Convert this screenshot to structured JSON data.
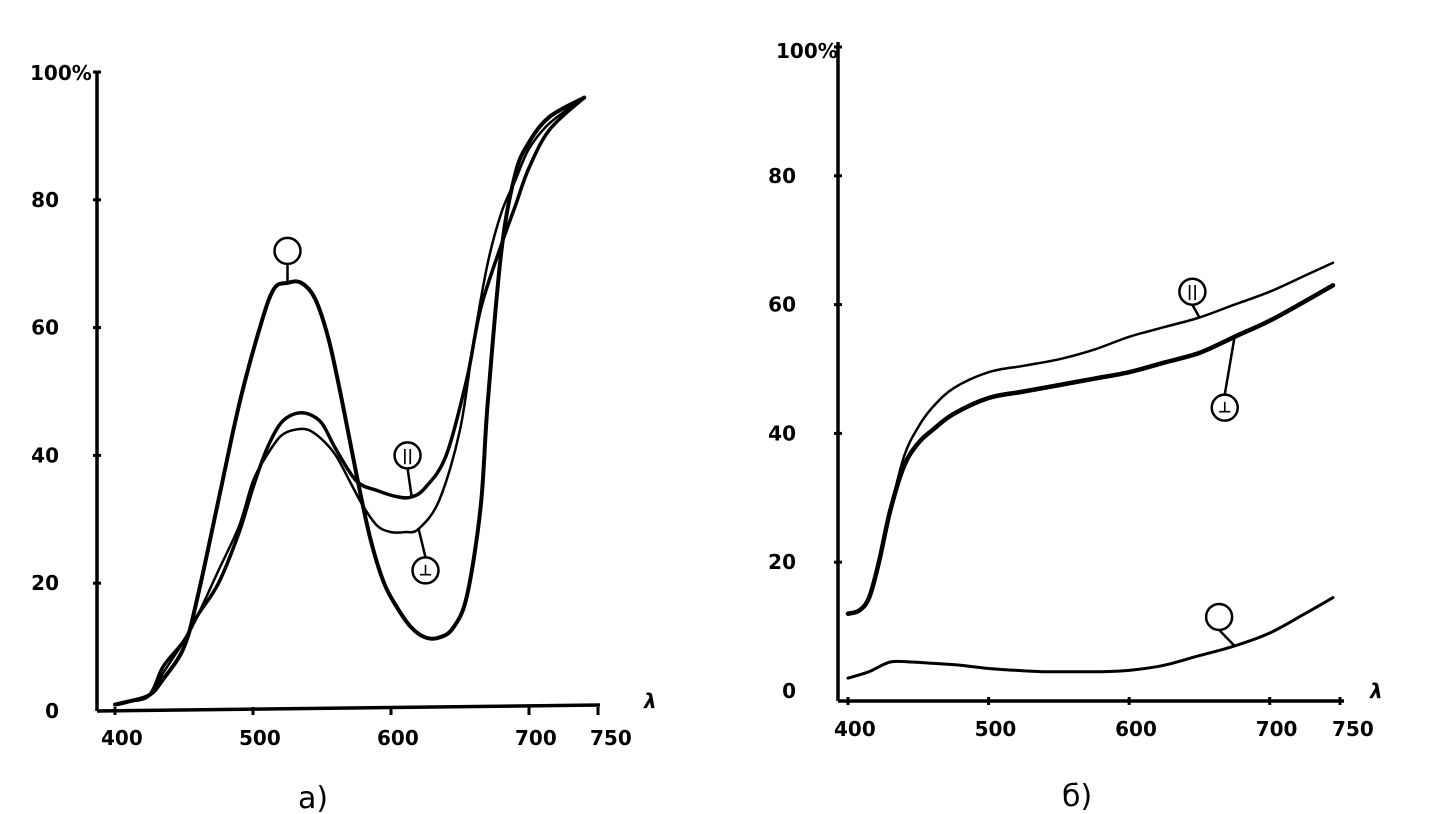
{
  "chart_data": [
    {
      "type": "line",
      "panel_label": "а)",
      "x_label": "λ",
      "x_ticks": [
        "400",
        "500",
        "600",
        "700",
        "750"
      ],
      "y_ticks": [
        "0",
        "20",
        "40",
        "60",
        "80",
        "100%"
      ],
      "xlim": [
        400,
        750
      ],
      "ylim": [
        0,
        100
      ],
      "series": [
        {
          "name": "О",
          "marker_label": "",
          "marker_shape": "circle-empty",
          "stroke_width": 4,
          "marker": {
            "x": 525,
            "y": 72
          },
          "points": [
            [
              400,
              1
            ],
            [
              410,
              1.5
            ],
            [
              425,
              2.5
            ],
            [
              435,
              5
            ],
            [
              450,
              10
            ],
            [
              460,
              18
            ],
            [
              475,
              33
            ],
            [
              490,
              48
            ],
            [
              505,
              60
            ],
            [
              515,
              66
            ],
            [
              525,
              67
            ],
            [
              535,
              67
            ],
            [
              545,
              64.5
            ],
            [
              555,
              58
            ],
            [
              565,
              48
            ],
            [
              575,
              37
            ],
            [
              585,
              27
            ],
            [
              595,
              20
            ],
            [
              605,
              16
            ],
            [
              615,
              13
            ],
            [
              625,
              11.5
            ],
            [
              635,
              11.5
            ],
            [
              645,
              13
            ],
            [
              655,
              18
            ],
            [
              665,
              32
            ],
            [
              670,
              48
            ],
            [
              680,
              72
            ],
            [
              690,
              84
            ],
            [
              700,
              89
            ],
            [
              715,
              93
            ],
            [
              740,
              96
            ]
          ]
        },
        {
          "name": "∥",
          "marker_label": "||",
          "marker_shape": "circle-text",
          "stroke_width": 3.5,
          "marker": {
            "x": 612,
            "y": 40
          },
          "points": [
            [
              400,
              1
            ],
            [
              410,
              1.5
            ],
            [
              425,
              2.5
            ],
            [
              435,
              7
            ],
            [
              450,
              11
            ],
            [
              460,
              15
            ],
            [
              475,
              20
            ],
            [
              490,
              28
            ],
            [
              500,
              35
            ],
            [
              510,
              41
            ],
            [
              520,
              45
            ],
            [
              530,
              46.5
            ],
            [
              540,
              46.5
            ],
            [
              550,
              45
            ],
            [
              560,
              41
            ],
            [
              575,
              36
            ],
            [
              590,
              34.5
            ],
            [
              605,
              33.5
            ],
            [
              615,
              33.5
            ],
            [
              625,
              35
            ],
            [
              640,
              40
            ],
            [
              655,
              52
            ],
            [
              665,
              63
            ],
            [
              680,
              73
            ],
            [
              690,
              79
            ],
            [
              700,
              85
            ],
            [
              715,
              91
            ],
            [
              740,
              96
            ]
          ]
        },
        {
          "name": "⊥",
          "marker_label": "⊥",
          "marker_shape": "circle-text",
          "stroke_width": 2.5,
          "marker": {
            "x": 625,
            "y": 22
          },
          "points": [
            [
              400,
              1
            ],
            [
              410,
              1.5
            ],
            [
              425,
              2.5
            ],
            [
              435,
              6
            ],
            [
              450,
              11
            ],
            [
              460,
              15
            ],
            [
              475,
              22
            ],
            [
              490,
              29
            ],
            [
              500,
              36
            ],
            [
              510,
              40
            ],
            [
              520,
              43
            ],
            [
              530,
              44
            ],
            [
              540,
              44
            ],
            [
              550,
              42.5
            ],
            [
              560,
              40
            ],
            [
              570,
              36
            ],
            [
              580,
              32
            ],
            [
              590,
              29
            ],
            [
              600,
              28
            ],
            [
              610,
              28
            ],
            [
              620,
              28.5
            ],
            [
              635,
              33
            ],
            [
              650,
              44
            ],
            [
              660,
              58
            ],
            [
              670,
              70
            ],
            [
              680,
              78
            ],
            [
              690,
              83
            ],
            [
              700,
              88
            ],
            [
              715,
              92
            ],
            [
              740,
              96
            ]
          ]
        }
      ]
    },
    {
      "type": "line",
      "panel_label": "б)",
      "x_label": "λ",
      "x_ticks": [
        "400",
        "500",
        "600",
        "700",
        "750"
      ],
      "y_ticks": [
        "0",
        "20",
        "40",
        "60",
        "80",
        "100%"
      ],
      "xlim": [
        400,
        750
      ],
      "ylim": [
        0,
        100
      ],
      "series": [
        {
          "name": "∥",
          "marker_label": "||",
          "marker_shape": "circle-text",
          "stroke_width": 2.5,
          "marker": {
            "x": 645,
            "y": 62
          },
          "points": [
            [
              400,
              12
            ],
            [
              408,
              12.5
            ],
            [
              415,
              14.5
            ],
            [
              422,
              20
            ],
            [
              430,
              28
            ],
            [
              440,
              36.5
            ],
            [
              450,
              41
            ],
            [
              460,
              44
            ],
            [
              475,
              47
            ],
            [
              500,
              49.5
            ],
            [
              525,
              50.5
            ],
            [
              550,
              51.5
            ],
            [
              575,
              53
            ],
            [
              600,
              55
            ],
            [
              625,
              56.5
            ],
            [
              650,
              58
            ],
            [
              675,
              60
            ],
            [
              700,
              62
            ],
            [
              725,
              64.5
            ],
            [
              745,
              66.5
            ]
          ]
        },
        {
          "name": "⊥",
          "marker_label": "⊥",
          "marker_shape": "circle-text",
          "stroke_width": 4.5,
          "marker": {
            "x": 668,
            "y": 44
          },
          "points": [
            [
              400,
              12
            ],
            [
              408,
              12.5
            ],
            [
              415,
              14.5
            ],
            [
              422,
              20
            ],
            [
              430,
              28
            ],
            [
              440,
              35
            ],
            [
              450,
              38.5
            ],
            [
              460,
              40.5
            ],
            [
              475,
              43
            ],
            [
              500,
              45.5
            ],
            [
              525,
              46.5
            ],
            [
              550,
              47.5
            ],
            [
              575,
              48.5
            ],
            [
              600,
              49.5
            ],
            [
              625,
              51
            ],
            [
              650,
              52.5
            ],
            [
              675,
              55
            ],
            [
              700,
              57.5
            ],
            [
              725,
              60.5
            ],
            [
              745,
              63
            ]
          ]
        },
        {
          "name": "О",
          "marker_label": "",
          "marker_shape": "circle-empty",
          "stroke_width": 3,
          "marker": {
            "x": 664,
            "y": 11.5
          },
          "points": [
            [
              400,
              2
            ],
            [
              415,
              3
            ],
            [
              430,
              4.5
            ],
            [
              445,
              4.5
            ],
            [
              460,
              4.3
            ],
            [
              480,
              4
            ],
            [
              500,
              3.5
            ],
            [
              520,
              3.2
            ],
            [
              540,
              3
            ],
            [
              560,
              3
            ],
            [
              580,
              3
            ],
            [
              600,
              3.2
            ],
            [
              625,
              4
            ],
            [
              650,
              5.5
            ],
            [
              675,
              7
            ],
            [
              700,
              9
            ],
            [
              725,
              12
            ],
            [
              745,
              14.5
            ]
          ]
        }
      ]
    }
  ]
}
